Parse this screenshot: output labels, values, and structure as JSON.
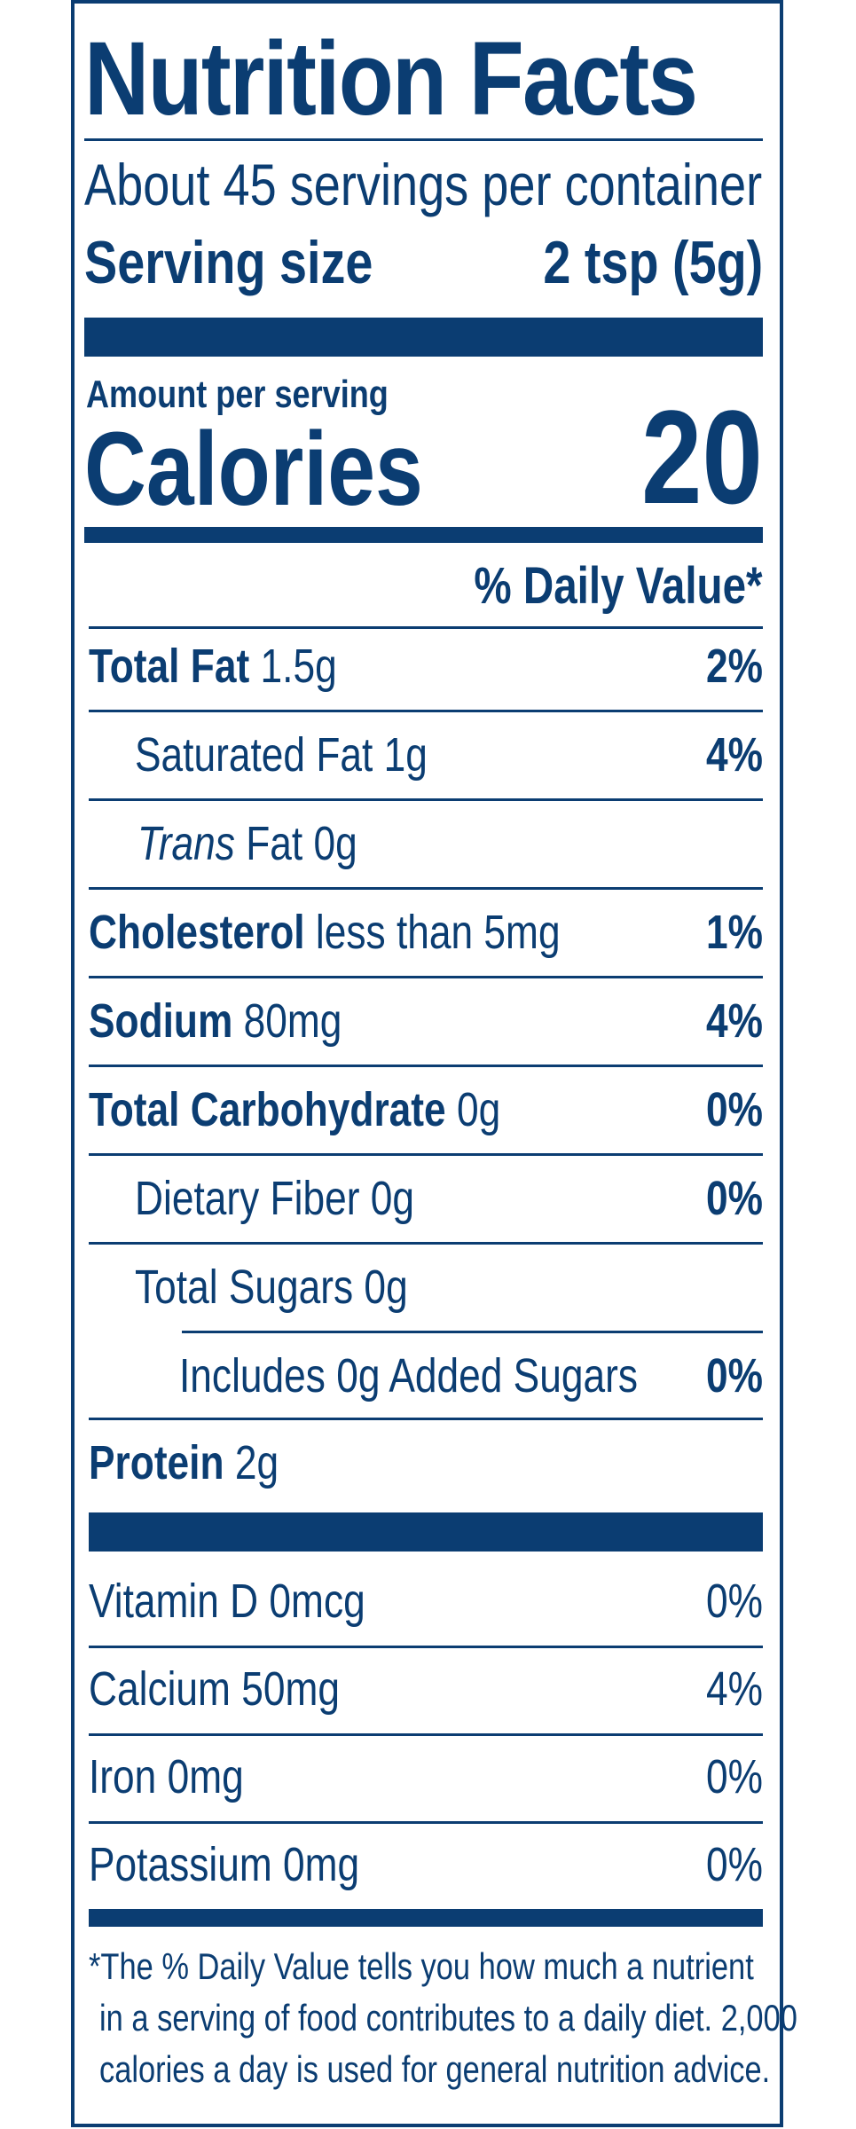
{
  "title": "Nutrition Facts",
  "servings": "About 45 servings per container",
  "serving_size_label": "Serving size",
  "serving_size_value": "2 tsp (5g)",
  "amount_per_serving": "Amount per serving",
  "calories_label": "Calories",
  "calories_value": "20",
  "daily_value_header": "% Daily Value*",
  "nutrients": {
    "total_fat": {
      "name": "Total Fat",
      "amount": "1.5g",
      "dv": "2%"
    },
    "saturated_fat": {
      "name": "Saturated Fat 1g",
      "dv": "4%"
    },
    "trans_fat": {
      "name_italic": "Trans",
      "name_rest": " Fat 0g"
    },
    "cholesterol": {
      "name": "Cholesterol",
      "amount": "less than 5mg",
      "dv": "1%"
    },
    "sodium": {
      "name": "Sodium",
      "amount": "80mg",
      "dv": "4%"
    },
    "total_carb": {
      "name": "Total Carbohydrate",
      "amount": "0g",
      "dv": "0%"
    },
    "dietary_fiber": {
      "name": "Dietary Fiber 0g",
      "dv": "0%"
    },
    "total_sugars": {
      "name": "Total Sugars 0g"
    },
    "added_sugars": {
      "name": "Includes 0g Added Sugars",
      "dv": "0%"
    },
    "protein": {
      "name": "Protein",
      "amount": "2g"
    }
  },
  "vitamins": [
    {
      "name": "Vitamin D 0mcg",
      "dv": "0%"
    },
    {
      "name": "Calcium 50mg",
      "dv": "4%"
    },
    {
      "name": "Iron 0mg",
      "dv": "0%"
    },
    {
      "name": "Potassium 0mg",
      "dv": "0%"
    }
  ],
  "footnote": [
    "*The % Daily Value tells you how much a nutrient",
    "in a serving of food contributes to a daily diet. 2,000",
    "calories a day is used for general nutrition advice."
  ],
  "colors": {
    "ink": "#0b3d72",
    "background": "#ffffff"
  }
}
